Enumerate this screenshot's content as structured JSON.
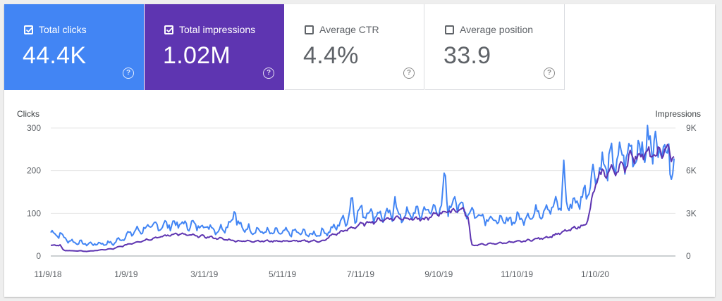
{
  "metrics": [
    {
      "label": "Total clicks",
      "value": "44.4K",
      "checked": true,
      "color": "#4285f4"
    },
    {
      "label": "Total impressions",
      "value": "1.02M",
      "checked": true,
      "color": "#5e35b1"
    },
    {
      "label": "Average CTR",
      "value": "4.4%",
      "checked": false
    },
    {
      "label": "Average position",
      "value": "33.9",
      "checked": false
    }
  ],
  "help_glyph": "?",
  "chart_data": {
    "type": "line",
    "x_ticks": [
      "11/9/18",
      "1/9/19",
      "3/11/19",
      "5/11/19",
      "7/11/19",
      "9/10/19",
      "11/10/19",
      "1/10/20"
    ],
    "y_left": {
      "title": "Clicks",
      "ticks": [
        "0",
        "100",
        "200",
        "300"
      ],
      "range": [
        0,
        300
      ]
    },
    "y_right": {
      "title": "Impressions",
      "ticks": [
        "0",
        "3K",
        "6K",
        "9K"
      ],
      "range": [
        0,
        9000
      ]
    },
    "series": [
      {
        "name": "Clicks",
        "axis": "left",
        "color": "#4285f4",
        "keypoints": [
          [
            0,
            55
          ],
          [
            0.015,
            50
          ],
          [
            0.03,
            35
          ],
          [
            0.06,
            28
          ],
          [
            0.1,
            30
          ],
          [
            0.13,
            55
          ],
          [
            0.16,
            68
          ],
          [
            0.2,
            75
          ],
          [
            0.25,
            70
          ],
          [
            0.27,
            60
          ],
          [
            0.29,
            80
          ],
          [
            0.31,
            65
          ],
          [
            0.35,
            55
          ],
          [
            0.4,
            55
          ],
          [
            0.42,
            50
          ],
          [
            0.45,
            60
          ],
          [
            0.47,
            85
          ],
          [
            0.5,
            105
          ],
          [
            0.53,
            95
          ],
          [
            0.56,
            92
          ],
          [
            0.6,
            105
          ],
          [
            0.62,
            110
          ],
          [
            0.65,
            120
          ],
          [
            0.67,
            105
          ],
          [
            0.7,
            90
          ],
          [
            0.72,
            80
          ],
          [
            0.76,
            90
          ],
          [
            0.8,
            115
          ],
          [
            0.83,
            120
          ],
          [
            0.85,
            130
          ],
          [
            0.875,
            200
          ],
          [
            0.9,
            220
          ],
          [
            0.93,
            240
          ],
          [
            0.96,
            260
          ],
          [
            0.975,
            230
          ],
          [
            1,
            225
          ]
        ],
        "spikes": [
          [
            0.295,
            113
          ],
          [
            0.483,
            148
          ],
          [
            0.552,
            142
          ],
          [
            0.632,
            212
          ],
          [
            0.648,
            140
          ],
          [
            0.823,
            225
          ],
          [
            0.868,
            170
          ],
          [
            0.97,
            295
          ],
          [
            0.984,
            280
          ],
          [
            0.995,
            180
          ]
        ]
      },
      {
        "name": "Impressions",
        "axis": "right",
        "color": "#5e35b1",
        "keypoints": [
          [
            0,
            750
          ],
          [
            0.015,
            780
          ],
          [
            0.02,
            390
          ],
          [
            0.06,
            330
          ],
          [
            0.1,
            510
          ],
          [
            0.13,
            900
          ],
          [
            0.16,
            1200
          ],
          [
            0.2,
            1560
          ],
          [
            0.25,
            1350
          ],
          [
            0.3,
            1050
          ],
          [
            0.35,
            1050
          ],
          [
            0.44,
            1050
          ],
          [
            0.445,
            1350
          ],
          [
            0.5,
            2250
          ],
          [
            0.53,
            2550
          ],
          [
            0.56,
            2700
          ],
          [
            0.6,
            2550
          ],
          [
            0.62,
            3000
          ],
          [
            0.66,
            3300
          ],
          [
            0.67,
            2700
          ],
          [
            0.675,
            750
          ],
          [
            0.72,
            900
          ],
          [
            0.76,
            1050
          ],
          [
            0.8,
            1350
          ],
          [
            0.83,
            1800
          ],
          [
            0.86,
            2250
          ],
          [
            0.865,
            3300
          ],
          [
            0.875,
            5100
          ],
          [
            0.88,
            5700
          ],
          [
            0.92,
            6300
          ],
          [
            0.935,
            6900
          ],
          [
            0.95,
            7200
          ],
          [
            0.97,
            7050
          ],
          [
            0.985,
            7500
          ],
          [
            1,
            6900
          ]
        ],
        "spikes": [
          [
            0.93,
            7500
          ],
          [
            0.99,
            7800
          ]
        ]
      }
    ]
  }
}
